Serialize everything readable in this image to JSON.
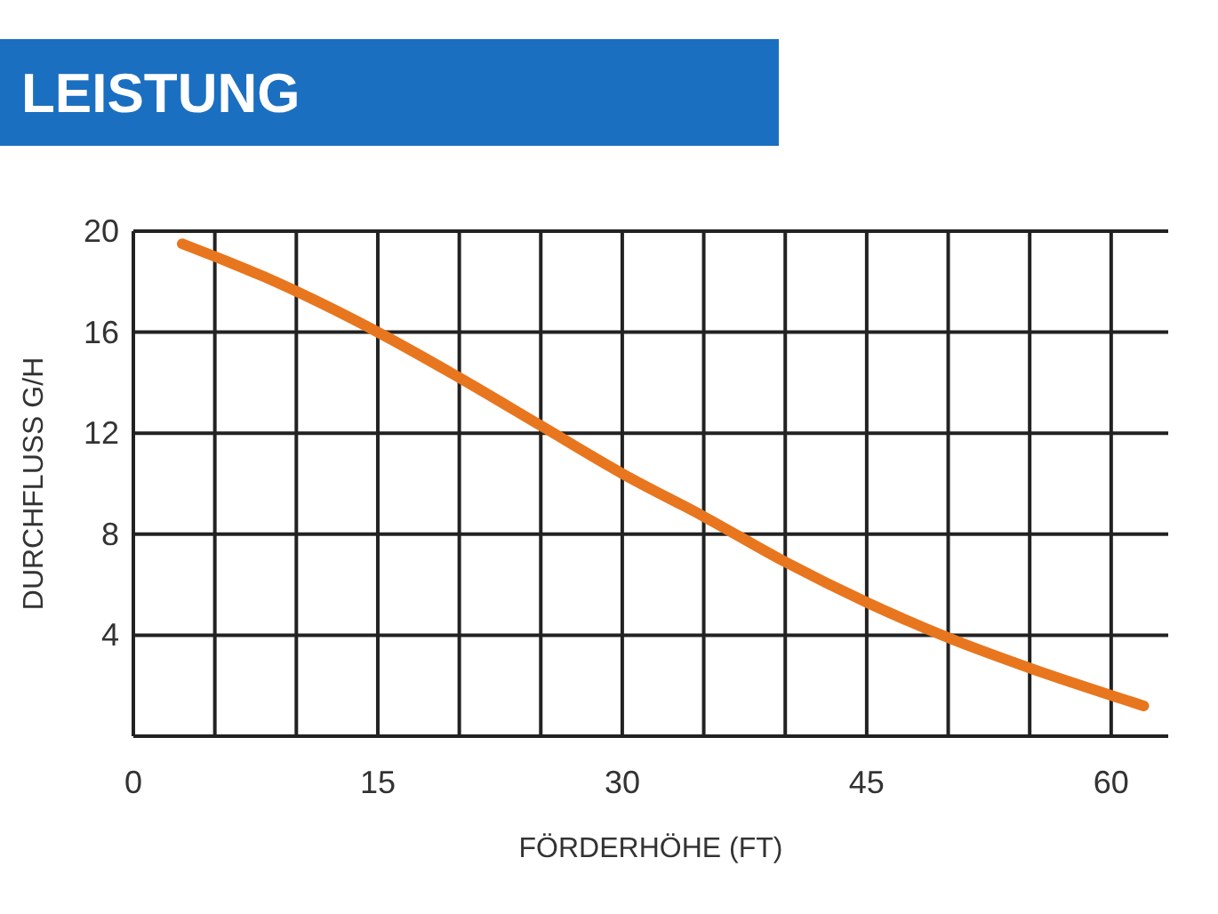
{
  "chart_data": {
    "type": "line",
    "title": "LEISTUNG",
    "xlabel": "FÖRDERHÖHE (FT)",
    "ylabel": "DURCHFLUSS G/H",
    "x": [
      3,
      8,
      15,
      20,
      25,
      30,
      35,
      40,
      45,
      50,
      55,
      62
    ],
    "series": [
      {
        "color": "#e8761e",
        "values": [
          19.5,
          18.2,
          16,
          14.2,
          12.3,
          10.4,
          8.7,
          6.9,
          5.3,
          3.9,
          2.7,
          1.2
        ]
      }
    ],
    "xlim": [
      0,
      63.5
    ],
    "ylim": [
      0,
      20
    ],
    "xticks": [
      0,
      {
        "value": 5,
        "label": null
      },
      {
        "value": 10,
        "label": null
      },
      15,
      {
        "value": 20,
        "label": null
      },
      {
        "value": 25,
        "label": null
      },
      30,
      {
        "value": 35,
        "label": null
      },
      {
        "value": 40,
        "label": null
      },
      45,
      {
        "value": 50,
        "label": null
      },
      {
        "value": 55,
        "label": null
      },
      60
    ],
    "yticks": [
      4,
      8,
      12,
      16,
      20
    ],
    "grid": true,
    "line_style": "solid",
    "marker": "none"
  }
}
